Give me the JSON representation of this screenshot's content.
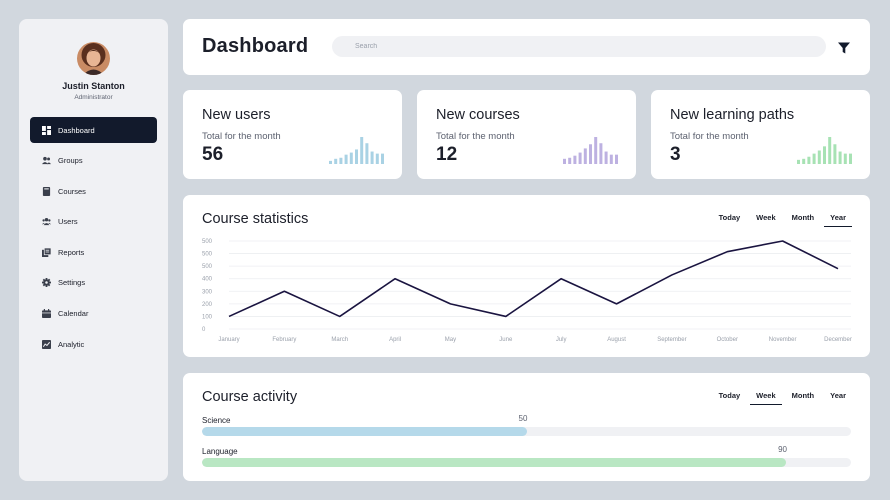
{
  "user": {
    "name": "Justin Stanton",
    "role": "Administrator"
  },
  "nav": [
    {
      "label": "Dashboard",
      "icon": "dashboard-icon",
      "active": true
    },
    {
      "label": "Groups",
      "icon": "groups-icon",
      "active": false
    },
    {
      "label": "Courses",
      "icon": "book-icon",
      "active": false
    },
    {
      "label": "Users",
      "icon": "users-icon",
      "active": false
    },
    {
      "label": "Reports",
      "icon": "reports-icon",
      "active": false
    },
    {
      "label": "Settings",
      "icon": "gear-icon",
      "active": false
    },
    {
      "label": "Calendar",
      "icon": "calendar-icon",
      "active": false
    },
    {
      "label": "Analytic",
      "icon": "analytic-icon",
      "active": false
    }
  ],
  "header": {
    "title": "Dashboard",
    "search_placeholder": "Search",
    "filter_icon": "filter-icon"
  },
  "stats": [
    {
      "title": "New users",
      "subtitle": "Total for the month",
      "value": "56",
      "color": "#a9d2e4",
      "sparkline": [
        3,
        5,
        6,
        9,
        11,
        14,
        26,
        20,
        12,
        10,
        10
      ]
    },
    {
      "title": "New courses",
      "subtitle": "Total for the month",
      "value": "12",
      "color": "#bdb1e1",
      "sparkline": [
        5,
        6,
        8,
        11,
        15,
        19,
        26,
        20,
        12,
        9,
        9
      ]
    },
    {
      "title": "New learning paths",
      "subtitle": "Total for the month",
      "value": "3",
      "color": "#a7e2b4",
      "sparkline": [
        4,
        5,
        7,
        10,
        13,
        17,
        26,
        19,
        12,
        10,
        10
      ]
    }
  ],
  "course_statistics": {
    "title": "Course statistics",
    "tabs": [
      {
        "label": "Today",
        "active": false
      },
      {
        "label": "Week",
        "active": false
      },
      {
        "label": "Month",
        "active": false
      },
      {
        "label": "Year",
        "active": true
      }
    ],
    "line_color": "#1a1440",
    "chart_data": {
      "type": "line",
      "categories": [
        "January",
        "February",
        "March",
        "April",
        "May",
        "June",
        "July",
        "August",
        "September",
        "October",
        "November",
        "December"
      ],
      "y_tick_labels": [
        "500",
        "500",
        "500",
        "400",
        "300",
        "200",
        "100",
        "0"
      ],
      "values": [
        100,
        300,
        100,
        400,
        200,
        100,
        400,
        200,
        430,
        615,
        700,
        480
      ],
      "ylim": [
        0,
        700
      ],
      "grid": true
    }
  },
  "course_activity": {
    "title": "Course activity",
    "tabs": [
      {
        "label": "Today",
        "active": false
      },
      {
        "label": "Week",
        "active": true
      },
      {
        "label": "Month",
        "active": false
      },
      {
        "label": "Year",
        "active": false
      }
    ],
    "bars": [
      {
        "label": "Science",
        "value": 50,
        "max": 100,
        "color": "#b5d9ea"
      },
      {
        "label": "Language",
        "value": 90,
        "max": 100,
        "color": "#b9e7c3"
      }
    ]
  }
}
